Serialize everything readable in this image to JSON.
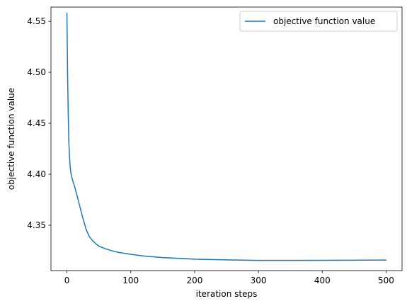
{
  "chart_data": {
    "type": "line",
    "title": "",
    "xlabel": "iteration steps",
    "ylabel": "objective function value",
    "xlim": [
      -25,
      525
    ],
    "ylim": [
      4.3055,
      4.564
    ],
    "xticks": [
      0,
      100,
      200,
      300,
      400,
      500
    ],
    "yticks": [
      4.35,
      4.4,
      4.45,
      4.5,
      4.55
    ],
    "xtick_labels": [
      "0",
      "100",
      "200",
      "300",
      "400",
      "500"
    ],
    "ytick_labels": [
      "4.35",
      "4.40",
      "4.45",
      "4.50",
      "4.55"
    ],
    "grid": false,
    "legend": {
      "position": "top-right",
      "entries": [
        "objective function value"
      ]
    },
    "series": [
      {
        "name": "objective function value",
        "color": "#1f77b4",
        "x": [
          0,
          1,
          2,
          3,
          4,
          5,
          6,
          8,
          10,
          12,
          15,
          18,
          20,
          25,
          30,
          35,
          40,
          45,
          50,
          60,
          70,
          80,
          100,
          120,
          150,
          200,
          250,
          300,
          350,
          400,
          450,
          500
        ],
        "y": [
          4.558,
          4.5,
          4.46,
          4.432,
          4.418,
          4.408,
          4.402,
          4.396,
          4.392,
          4.388,
          4.381,
          4.374,
          4.369,
          4.357,
          4.346,
          4.339,
          4.335,
          4.332,
          4.3295,
          4.327,
          4.325,
          4.3235,
          4.3215,
          4.3198,
          4.3183,
          4.3167,
          4.316,
          4.3155,
          4.3155,
          4.3156,
          4.3157,
          4.3158
        ]
      }
    ]
  }
}
